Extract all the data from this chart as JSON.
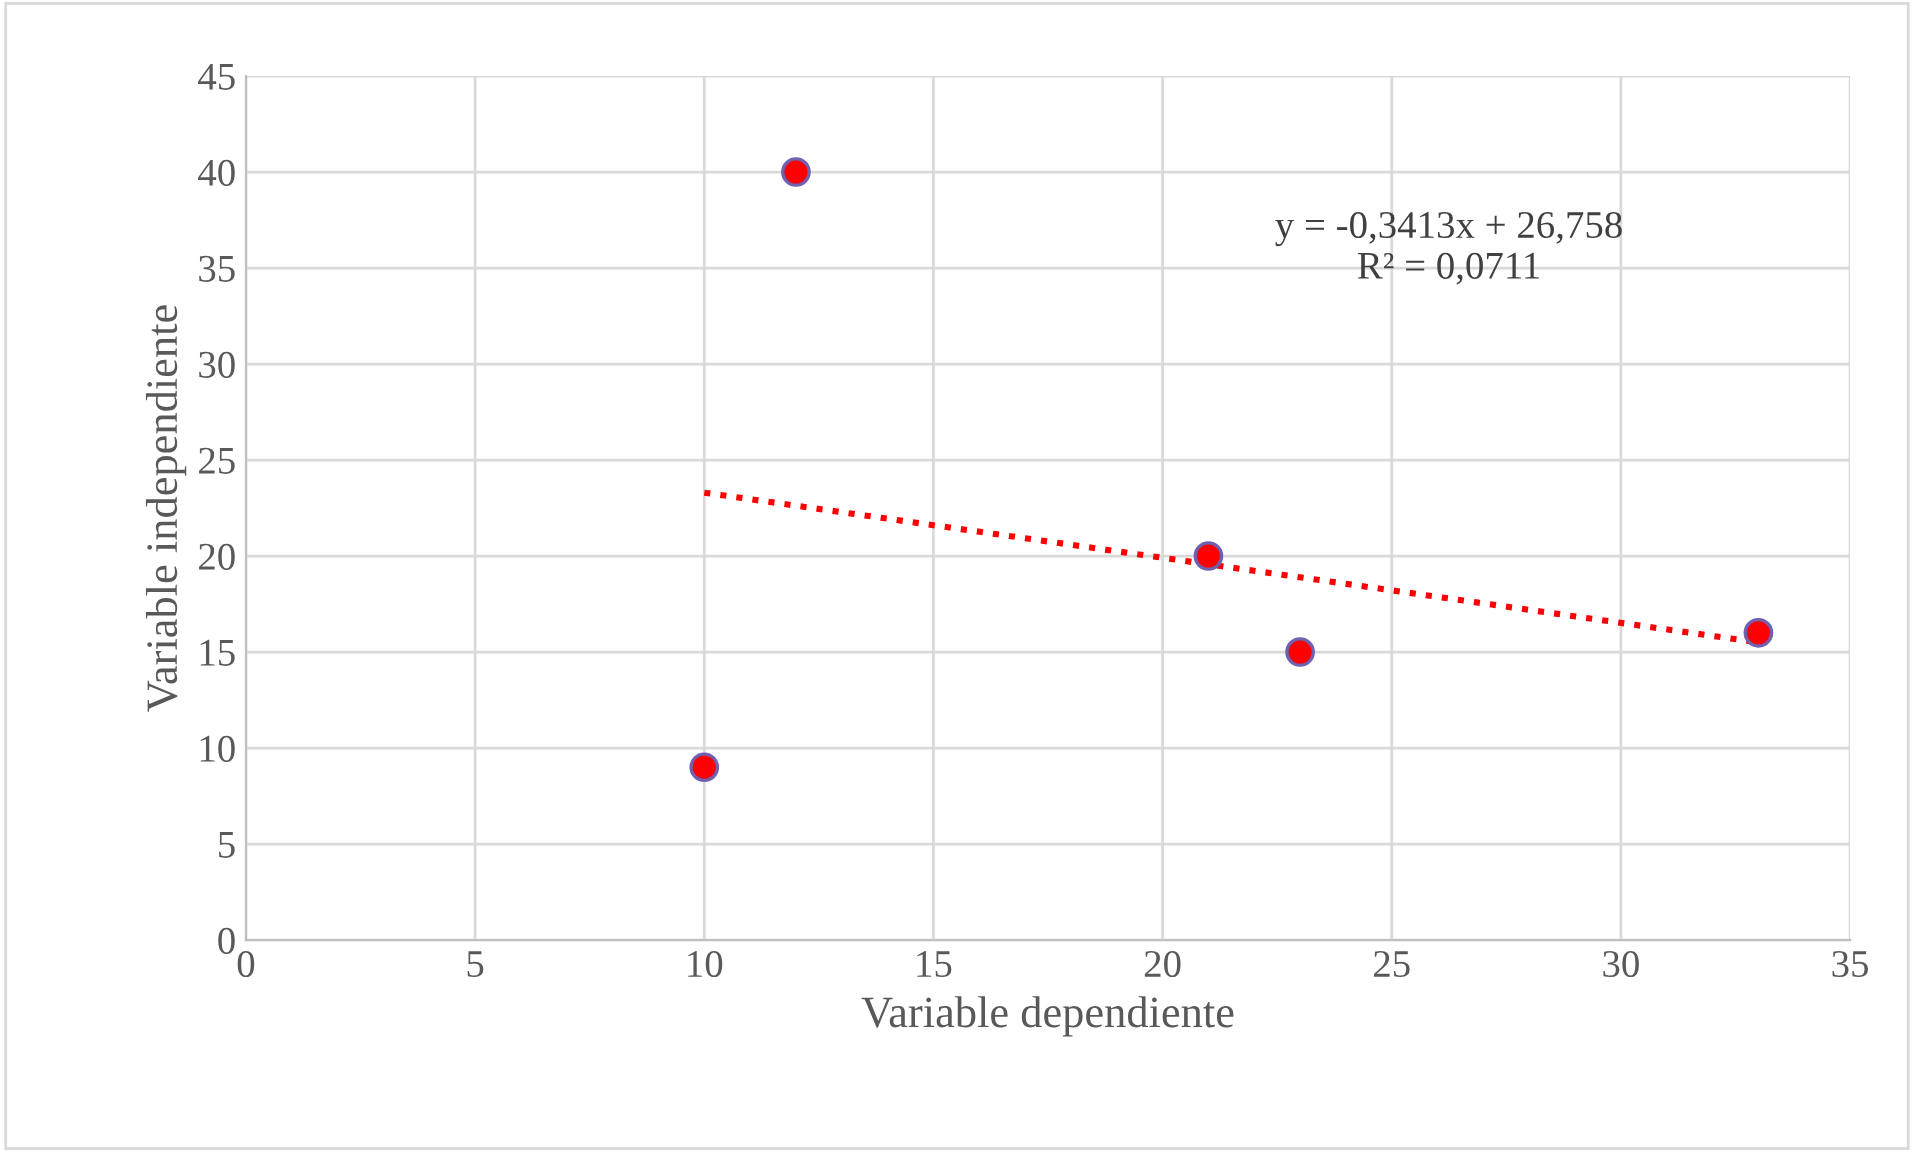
{
  "chart_data": {
    "type": "scatter",
    "xlabel": "Variable dependiente",
    "ylabel": "Variable independiente",
    "xlim": [
      0,
      35
    ],
    "xticks": [
      0,
      5,
      10,
      15,
      20,
      25,
      30,
      35
    ],
    "ylim": [
      0,
      45
    ],
    "yticks": [
      0,
      5,
      10,
      15,
      20,
      25,
      30,
      35,
      40,
      45
    ],
    "grid": true,
    "marker": "circle",
    "series": [
      {
        "color": "#ff0000",
        "x": [
          10,
          12,
          21,
          23,
          33
        ],
        "values": [
          9,
          40,
          20,
          15,
          16
        ]
      },
      {
        "type": "line",
        "color": "#ff0000",
        "line_style": "dotted",
        "marker": "none",
        "x": [
          10,
          33
        ],
        "values": [
          23.3,
          15.5
        ]
      }
    ],
    "annotations": [
      "y = -0,3413x + 26,758\nR² = 0,0711"
    ]
  }
}
